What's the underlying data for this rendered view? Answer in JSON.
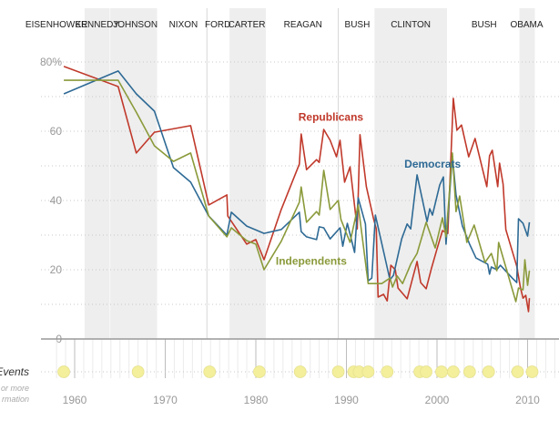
{
  "chart_data": {
    "type": "line",
    "title": "",
    "xlabel": "",
    "ylabel": "",
    "xlim": [
      1956.2,
      2013.4
    ],
    "ylim": [
      0,
      80
    ],
    "y_ticks": [
      {
        "value": 0,
        "label": "0"
      },
      {
        "value": 20,
        "label": "20"
      },
      {
        "value": 40,
        "label": "40"
      },
      {
        "value": 60,
        "label": "60"
      },
      {
        "value": 80,
        "label": "80%"
      }
    ],
    "y_minor_gridlines": [
      10,
      30,
      50,
      70
    ],
    "x_ticks": [
      {
        "value": 1960,
        "label": "1960"
      },
      {
        "value": 1970,
        "label": "1970"
      },
      {
        "value": 1980,
        "label": "1980"
      },
      {
        "value": 1990,
        "label": "1990"
      },
      {
        "value": 2000,
        "label": "2000"
      },
      {
        "value": 2010,
        "label": "2010"
      }
    ],
    "grid": true,
    "presidencies": [
      {
        "name": "EISENHOWER",
        "start": 1953,
        "end": 1961.1,
        "shaded": false,
        "label_at": 1958
      },
      {
        "name": "KENNEDY",
        "start": 1961.1,
        "end": 1963.9,
        "shaded": true,
        "label_at": 1962.5
      },
      {
        "name": "JOHNSON",
        "start": 1963.9,
        "end": 1969.1,
        "shaded": true,
        "label_at": 1966.7
      },
      {
        "name": "NIXON",
        "start": 1969.1,
        "end": 1974.6,
        "shaded": false,
        "label_at": 1972
      },
      {
        "name": "FORD",
        "start": 1974.6,
        "end": 1977.1,
        "shaded": false,
        "label_at": 1975.8
      },
      {
        "name": "CARTER",
        "start": 1977.1,
        "end": 1981.1,
        "shaded": true,
        "label_at": 1979
      },
      {
        "name": "REAGAN",
        "start": 1981.1,
        "end": 1989.1,
        "shaded": false,
        "label_at": 1985.2
      },
      {
        "name": "BUSH",
        "start": 1989.1,
        "end": 1993.1,
        "shaded": false,
        "label_at": 1991.2
      },
      {
        "name": "CLINTON",
        "start": 1993.1,
        "end": 2001.1,
        "shaded": true,
        "label_at": 1997.1
      },
      {
        "name": "BUSH",
        "start": 2001.1,
        "end": 2009.1,
        "shaded": false,
        "label_at": 2005.2
      },
      {
        "name": "OBAMA",
        "start": 2009.1,
        "end": 2010.8,
        "shaded": true,
        "label_at": 2009.9
      }
    ],
    "series": [
      {
        "name": "Republicans",
        "color": "#c0392b",
        "label_at": [
          1984.7,
          63
        ],
        "points": [
          [
            1958.8,
            78.7
          ],
          [
            1964.8,
            72.9
          ],
          [
            1966.8,
            53.7
          ],
          [
            1968.8,
            59.7
          ],
          [
            1972.8,
            61.6
          ],
          [
            1974.8,
            38.7
          ],
          [
            1976.8,
            41.6
          ],
          [
            1976.9,
            35.5
          ],
          [
            1979,
            27.4
          ],
          [
            1980,
            28.7
          ],
          [
            1980.9,
            22.9
          ],
          [
            1982.8,
            37.4
          ],
          [
            1984.8,
            50.5
          ],
          [
            1985,
            59.2
          ],
          [
            1985.6,
            48.9
          ],
          [
            1986.7,
            51.8
          ],
          [
            1987,
            51
          ],
          [
            1987.5,
            60.5
          ],
          [
            1988.2,
            57.4
          ],
          [
            1988.9,
            52.6
          ],
          [
            1989.3,
            57.4
          ],
          [
            1989.8,
            45.3
          ],
          [
            1990.4,
            49.7
          ],
          [
            1991.2,
            31.8
          ],
          [
            1991.5,
            59
          ],
          [
            1992.2,
            44
          ],
          [
            1993,
            34.7
          ],
          [
            1993.3,
            31.8
          ],
          [
            1993.5,
            12.1
          ],
          [
            1994.1,
            12.9
          ],
          [
            1994.5,
            11
          ],
          [
            1994.9,
            21.3
          ],
          [
            1995.4,
            20
          ],
          [
            1995.7,
            14.7
          ],
          [
            1996.7,
            11.6
          ],
          [
            1997.8,
            22.4
          ],
          [
            1998.2,
            16.3
          ],
          [
            1998.8,
            14.5
          ],
          [
            1999.4,
            20.5
          ],
          [
            2000,
            26
          ],
          [
            2000.6,
            31.3
          ],
          [
            2001.2,
            30.5
          ],
          [
            2001.8,
            69.5
          ],
          [
            2002.2,
            60.3
          ],
          [
            2002.7,
            61.8
          ],
          [
            2003.5,
            52.6
          ],
          [
            2004.2,
            57.9
          ],
          [
            2005.5,
            44
          ],
          [
            2005.8,
            52.9
          ],
          [
            2006.1,
            54.5
          ],
          [
            2006.7,
            44
          ],
          [
            2006.9,
            50.8
          ],
          [
            2007.3,
            44.7
          ],
          [
            2007.6,
            31.6
          ],
          [
            2008.8,
            21
          ],
          [
            2009.2,
            15
          ],
          [
            2009.5,
            11.8
          ],
          [
            2009.8,
            12.6
          ],
          [
            2010.1,
            7.9
          ],
          [
            2010.2,
            11.8
          ]
        ]
      },
      {
        "name": "Democrats",
        "color": "#2e6a95",
        "label_at": [
          1996.4,
          49.5
        ],
        "points": [
          [
            1958.8,
            70.8
          ],
          [
            1964.8,
            77.4
          ],
          [
            1966.8,
            70.8
          ],
          [
            1968.8,
            65.8
          ],
          [
            1970.9,
            49.5
          ],
          [
            1972.8,
            45.3
          ],
          [
            1974.8,
            35.5
          ],
          [
            1976.8,
            30
          ],
          [
            1977.3,
            36.6
          ],
          [
            1979,
            32.6
          ],
          [
            1980.9,
            30.5
          ],
          [
            1982.8,
            31.6
          ],
          [
            1984.8,
            36.6
          ],
          [
            1985,
            31
          ],
          [
            1985.6,
            29.5
          ],
          [
            1986.7,
            28.7
          ],
          [
            1987,
            32.4
          ],
          [
            1987.5,
            32.1
          ],
          [
            1988.2,
            28.9
          ],
          [
            1989.3,
            32.1
          ],
          [
            1989.6,
            26.8
          ],
          [
            1990.1,
            33.4
          ],
          [
            1990.9,
            25
          ],
          [
            1991.3,
            40.8
          ],
          [
            1992.1,
            33.2
          ],
          [
            1992.4,
            16.8
          ],
          [
            1992.8,
            17.6
          ],
          [
            1993.2,
            35.8
          ],
          [
            1994.8,
            17.1
          ],
          [
            1995.2,
            18.4
          ],
          [
            1996.1,
            28.9
          ],
          [
            1996.7,
            33.2
          ],
          [
            1997.1,
            31.8
          ],
          [
            1997.8,
            47.4
          ],
          [
            1998.9,
            33.9
          ],
          [
            1999.2,
            37.6
          ],
          [
            1999.5,
            35.8
          ],
          [
            2000.3,
            44.5
          ],
          [
            2000.7,
            46.8
          ],
          [
            2001,
            27.4
          ],
          [
            2001.7,
            52.9
          ],
          [
            2002.1,
            41.6
          ],
          [
            2002.8,
            32.6
          ],
          [
            2003.6,
            27.4
          ],
          [
            2004.3,
            23.4
          ],
          [
            2005.6,
            21.6
          ],
          [
            2005.8,
            18.7
          ],
          [
            2006,
            20.8
          ],
          [
            2006.6,
            20
          ],
          [
            2007,
            21.3
          ],
          [
            2008.3,
            17.6
          ],
          [
            2008.8,
            16.3
          ],
          [
            2009,
            34.7
          ],
          [
            2009.5,
            33.4
          ],
          [
            2010,
            29.7
          ],
          [
            2010.2,
            33.7
          ]
        ]
      },
      {
        "name": "Independents",
        "color": "#8a9a3a",
        "label_at": [
          1982.2,
          21.5
        ],
        "points": [
          [
            1958.8,
            74.7
          ],
          [
            1964.8,
            74.7
          ],
          [
            1966.8,
            65.5
          ],
          [
            1968.8,
            55.8
          ],
          [
            1970.9,
            51.3
          ],
          [
            1972.8,
            53.7
          ],
          [
            1974.8,
            35.5
          ],
          [
            1976.8,
            29.5
          ],
          [
            1977.3,
            32.1
          ],
          [
            1979,
            28.4
          ],
          [
            1980,
            27.4
          ],
          [
            1980.9,
            20
          ],
          [
            1982.8,
            28.2
          ],
          [
            1984.8,
            39.5
          ],
          [
            1985,
            43.9
          ],
          [
            1985.6,
            33.7
          ],
          [
            1986.7,
            36.8
          ],
          [
            1987,
            35.8
          ],
          [
            1987.5,
            48.7
          ],
          [
            1988.2,
            37.4
          ],
          [
            1989.1,
            40
          ],
          [
            1989.4,
            34.5
          ],
          [
            1990.4,
            27.9
          ],
          [
            1991.3,
            38.7
          ],
          [
            1992.4,
            16
          ],
          [
            1993,
            16
          ],
          [
            1993.9,
            16
          ],
          [
            1994.8,
            17.6
          ],
          [
            1995.1,
            15
          ],
          [
            1995.6,
            18.2
          ],
          [
            1996.2,
            16
          ],
          [
            1997.1,
            21.6
          ],
          [
            1997.8,
            24.7
          ],
          [
            1998.8,
            33.7
          ],
          [
            1999.8,
            26.3
          ],
          [
            2000.6,
            35
          ],
          [
            2001,
            29.5
          ],
          [
            2001.7,
            53.7
          ],
          [
            2002.1,
            36.8
          ],
          [
            2002.5,
            41.3
          ],
          [
            2003.3,
            27.9
          ],
          [
            2004.1,
            32.9
          ],
          [
            2005.3,
            22.1
          ],
          [
            2006,
            24.7
          ],
          [
            2006.6,
            19.7
          ],
          [
            2006.8,
            27.9
          ],
          [
            2008.7,
            10.8
          ],
          [
            2009,
            14.7
          ],
          [
            2009.5,
            14.2
          ],
          [
            2009.7,
            22.9
          ],
          [
            2010,
            15.5
          ],
          [
            2010.2,
            19.7
          ]
        ]
      }
    ],
    "events": {
      "title": "Events",
      "subtitle_line1": "or more",
      "subtitle_line2": "rmation",
      "color": "#f3ef9a",
      "years": [
        1958.8,
        1967,
        1974.9,
        1980.4,
        1984.9,
        1989.1,
        1990.8,
        1991.4,
        1992.4,
        1994.5,
        1998.1,
        1998.8,
        2000.5,
        2001.8,
        2003.6,
        2005.7,
        2008.9,
        2010.5
      ]
    }
  }
}
